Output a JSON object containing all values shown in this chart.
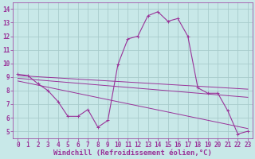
{
  "xlabel": "Windchill (Refroidissement éolien,°C)",
  "background_color": "#c8e8e8",
  "grid_color": "#a8cccc",
  "line_color": "#993399",
  "xlim": [
    -0.5,
    23.5
  ],
  "ylim": [
    4.5,
    14.5
  ],
  "xticks": [
    0,
    1,
    2,
    3,
    4,
    5,
    6,
    7,
    8,
    9,
    10,
    11,
    12,
    13,
    14,
    15,
    16,
    17,
    18,
    19,
    20,
    21,
    22,
    23
  ],
  "yticks": [
    5,
    6,
    7,
    8,
    9,
    10,
    11,
    12,
    13,
    14
  ],
  "main_series": {
    "x": [
      0,
      1,
      2,
      3,
      4,
      5,
      6,
      7,
      8,
      9,
      10,
      11,
      12,
      13,
      14,
      15,
      16,
      17,
      18,
      19,
      20,
      21,
      22,
      23
    ],
    "y": [
      9.2,
      9.1,
      8.5,
      8.0,
      7.2,
      6.1,
      6.1,
      6.6,
      5.3,
      5.8,
      9.9,
      11.8,
      12.0,
      13.5,
      13.8,
      13.1,
      13.3,
      12.0,
      8.2,
      7.8,
      7.8,
      6.5,
      4.8,
      5.0
    ]
  },
  "trend_line1": {
    "x": [
      0,
      23
    ],
    "y": [
      9.1,
      8.1
    ]
  },
  "trend_line2": {
    "x": [
      0,
      23
    ],
    "y": [
      8.9,
      7.5
    ]
  },
  "trend_line3": {
    "x": [
      0,
      23
    ],
    "y": [
      8.7,
      5.2
    ]
  },
  "tick_fontsize": 5.5,
  "xlabel_fontsize": 6.5
}
